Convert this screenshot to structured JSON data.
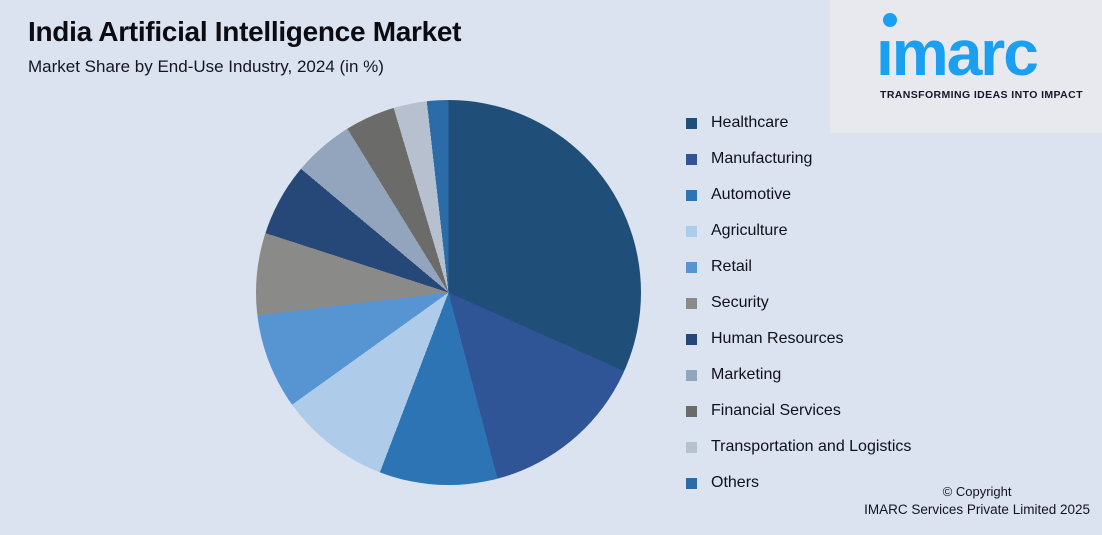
{
  "header": {
    "title": "India Artificial Intelligence Market",
    "subtitle": "Market Share by End-Use Industry, 2024 (in %)"
  },
  "logo": {
    "brand": "imarc",
    "brand_wordmark_dotless": "ımarc",
    "tagline": "TRANSFORMING IDEAS INTO IMPACT",
    "brand_color": "#1b9ff0"
  },
  "chart_data": {
    "type": "pie",
    "title": "India Artificial Intelligence Market",
    "subtitle": "Market Share by End-Use Industry, 2024 (in %)",
    "unit": "%",
    "start_angle_deg": 0,
    "direction": "clockwise",
    "legend_position": "right",
    "data_labels_shown": false,
    "slices": [
      {
        "label": "Healthcare",
        "value": 31.7,
        "color": "#1f4e79"
      },
      {
        "label": "Manufacturing",
        "value": 14.2,
        "color": "#2f5597"
      },
      {
        "label": "Automotive",
        "value": 9.9,
        "color": "#2d74b4"
      },
      {
        "label": "Agriculture",
        "value": 9.3,
        "color": "#aecbe9"
      },
      {
        "label": "Retail",
        "value": 8.0,
        "color": "#5694d2"
      },
      {
        "label": "Security",
        "value": 6.9,
        "color": "#8a8a89"
      },
      {
        "label": "Human Resources",
        "value": 6.1,
        "color": "#264879"
      },
      {
        "label": "Marketing",
        "value": 5.1,
        "color": "#93a5bc"
      },
      {
        "label": "Financial Services",
        "value": 4.2,
        "color": "#6b6b69"
      },
      {
        "label": "Transportation and Logistics",
        "value": 2.8,
        "color": "#b6c0cf"
      },
      {
        "label": "Others",
        "value": 1.8,
        "color": "#2b6ba8"
      }
    ]
  },
  "footer": {
    "line1": "© Copyright",
    "line2": "IMARC Services Private Limited 2025"
  }
}
